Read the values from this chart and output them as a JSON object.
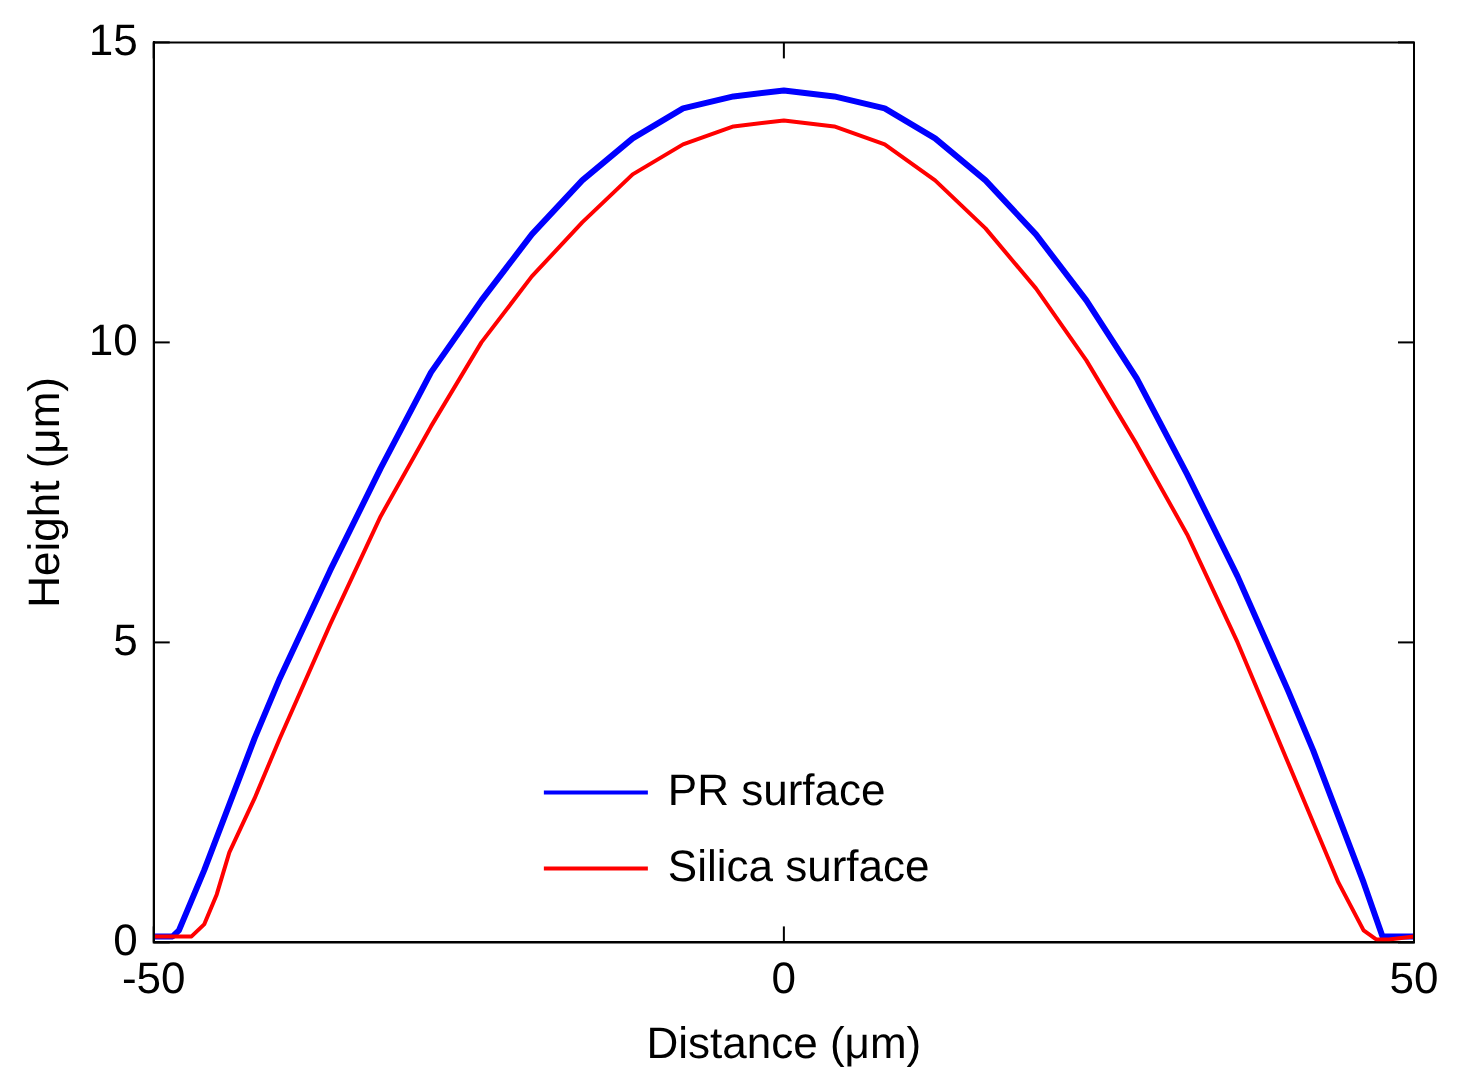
{
  "chart_data": {
    "type": "line",
    "xlabel": "Distance (μm)",
    "ylabel": "Height (μm)",
    "xlim": [
      -50,
      50
    ],
    "xticks": [
      -50,
      0,
      50
    ],
    "ylim": [
      0,
      15
    ],
    "yticks": [
      0,
      5,
      10,
      15
    ],
    "grid": false,
    "legend": "bottom",
    "marker": "none",
    "line_style": "solid",
    "series": [
      {
        "name": "PR surface",
        "color": "#0000ff",
        "x": [
          -50,
          -48.5,
          -48,
          -47,
          -46,
          -44,
          -42,
          -40,
          -36,
          -32,
          -28,
          -24,
          -20,
          -16,
          -12,
          -8,
          -4,
          0,
          4,
          8,
          12,
          16,
          20,
          24,
          28,
          32,
          36,
          40,
          42,
          44,
          46,
          47,
          47.5,
          48,
          50
        ],
        "values": [
          0.1,
          0.1,
          0.2,
          0.7,
          1.2,
          2.3,
          3.4,
          4.4,
          6.2,
          7.9,
          9.5,
          10.7,
          11.8,
          12.7,
          13.4,
          13.9,
          14.1,
          14.2,
          14.1,
          13.9,
          13.4,
          12.7,
          11.8,
          10.7,
          9.4,
          7.8,
          6.1,
          4.2,
          3.2,
          2.1,
          1.0,
          0.4,
          0.1,
          0.1,
          0.1
        ]
      },
      {
        "name": "Silica surface",
        "color": "#ff0000",
        "x": [
          -50,
          -48,
          -47,
          -46,
          -45,
          -44,
          -42,
          -40,
          -36,
          -32,
          -28,
          -24,
          -20,
          -16,
          -12,
          -8,
          -4,
          0,
          4,
          8,
          12,
          16,
          20,
          24,
          28,
          32,
          36,
          40,
          42,
          44,
          45,
          46,
          47,
          48,
          50
        ],
        "values": [
          0.1,
          0.1,
          0.1,
          0.3,
          0.8,
          1.5,
          2.4,
          3.4,
          5.3,
          7.1,
          8.6,
          10.0,
          11.1,
          12.0,
          12.8,
          13.3,
          13.6,
          13.7,
          13.6,
          13.3,
          12.7,
          11.9,
          10.9,
          9.7,
          8.3,
          6.8,
          5.0,
          3.0,
          2.0,
          1.0,
          0.6,
          0.2,
          0.05,
          0.05,
          0.1
        ]
      }
    ]
  }
}
